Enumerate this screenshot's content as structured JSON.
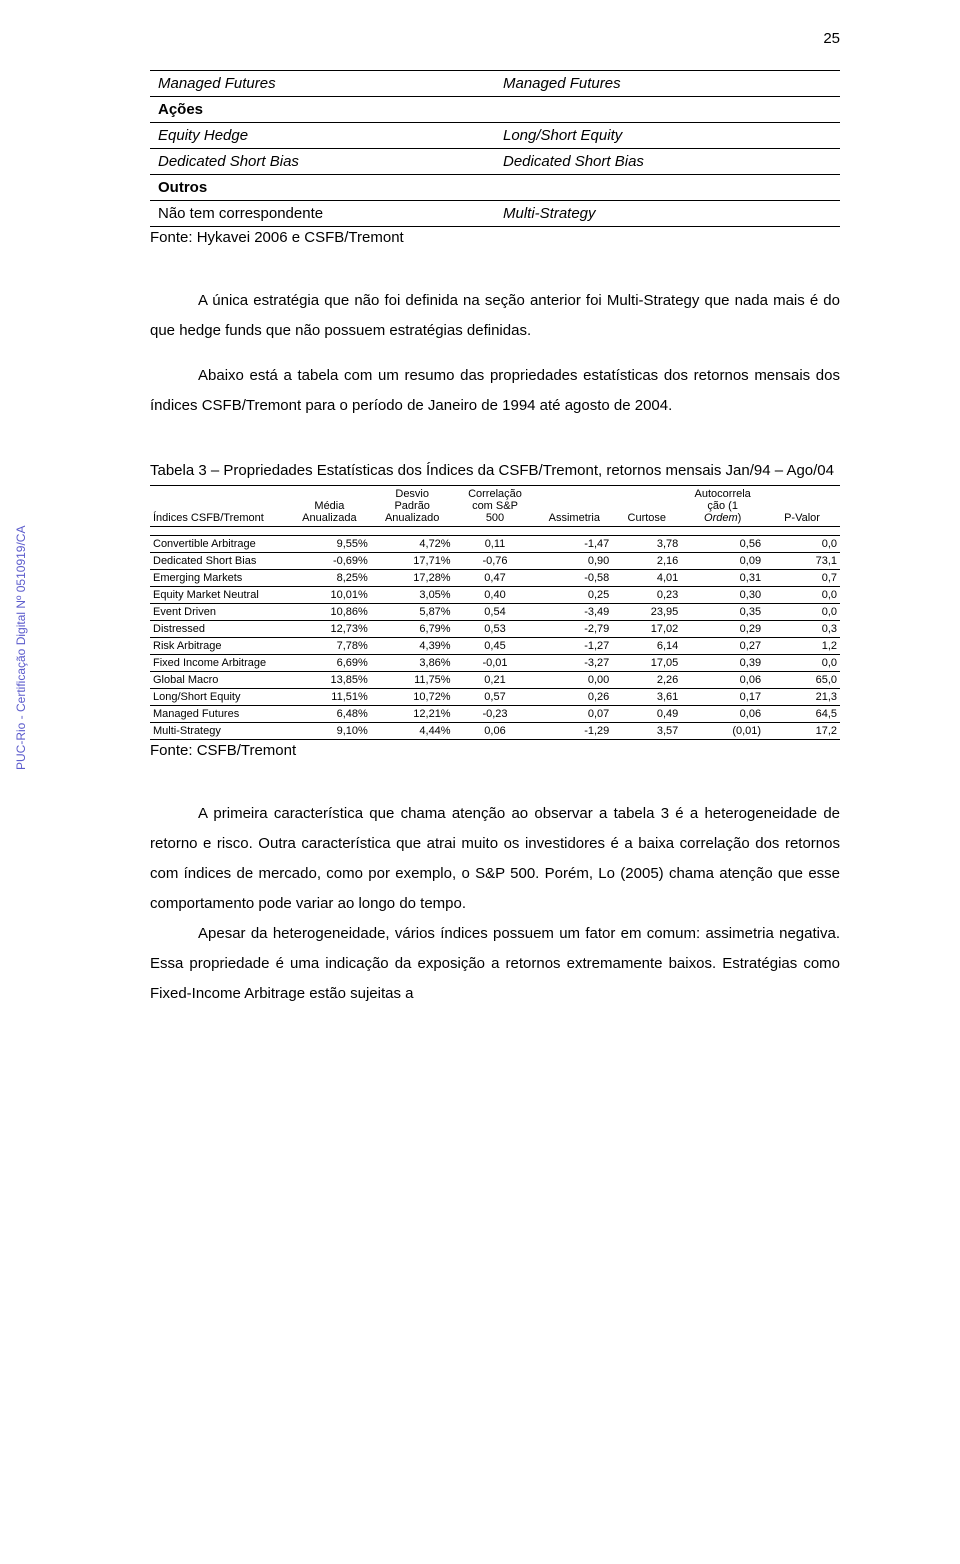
{
  "pageNumber": "25",
  "watermark": "PUC-Rio - Certificação Digital Nº 0510919/CA",
  "table1": {
    "rows": [
      {
        "left": "Managed Futures",
        "leftItalic": true,
        "right": "Managed Futures",
        "rightItalic": true,
        "leftBold": false
      },
      {
        "left": "Ações",
        "leftItalic": false,
        "right": "",
        "rightItalic": false,
        "leftBold": true
      },
      {
        "left": "Equity Hedge",
        "leftItalic": true,
        "right": "Long/Short Equity",
        "rightItalic": true,
        "leftBold": false
      },
      {
        "left": "Dedicated Short Bias",
        "leftItalic": true,
        "right": "Dedicated Short Bias",
        "rightItalic": true,
        "leftBold": false
      },
      {
        "left": "Outros",
        "leftItalic": false,
        "right": "",
        "rightItalic": false,
        "leftBold": true
      },
      {
        "left": "Não tem correspondente",
        "leftItalic": false,
        "right": "Multi-Strategy",
        "rightItalic": true,
        "leftBold": false
      }
    ],
    "source": "Fonte: Hykavei 2006 e CSFB/Tremont"
  },
  "para1": "A única estratégia que não foi definida na seção anterior foi Multi-Strategy que nada mais é do que hedge funds que não possuem estratégias definidas.",
  "para2": "Abaixo está a tabela com um resumo das propriedades estatísticas dos retornos mensais dos índices CSFB/Tremont para o período de Janeiro de 1994 até agosto de 2004.",
  "table3": {
    "caption": "Tabela 3 – Propriedades Estatísticas dos Índices da CSFB/Tremont, retornos mensais Jan/94 – Ago/04",
    "columns": [
      "Índices CSFB/Tremont",
      "Média Anualizada",
      "Desvio Padrão Anualizado",
      "Correlação com S&P 500",
      "Assimetria",
      "Curtose",
      "Autocorrela ção (1 Ordem)",
      "P-Valor"
    ],
    "columnItalic": [
      false,
      false,
      false,
      false,
      false,
      false,
      true,
      false
    ],
    "rows": [
      {
        "name": "Convertible Arbitrage",
        "avg": "9,55%",
        "sd": "4,72%",
        "corr": "0,11",
        "skew": "-1,47",
        "kurt": "3,78",
        "ac": "0,56",
        "pv": "0,0"
      },
      {
        "name": "Dedicated Short Bias",
        "avg": "-0,69%",
        "sd": "17,71%",
        "corr": "-0,76",
        "skew": "0,90",
        "kurt": "2,16",
        "ac": "0,09",
        "pv": "73,1"
      },
      {
        "name": "Emerging Markets",
        "avg": "8,25%",
        "sd": "17,28%",
        "corr": "0,47",
        "skew": "-0,58",
        "kurt": "4,01",
        "ac": "0,31",
        "pv": "0,7"
      },
      {
        "name": "Equity Market Neutral",
        "avg": "10,01%",
        "sd": "3,05%",
        "corr": "0,40",
        "skew": "0,25",
        "kurt": "0,23",
        "ac": "0,30",
        "pv": "0,0"
      },
      {
        "name": "Event Driven",
        "avg": "10,86%",
        "sd": "5,87%",
        "corr": "0,54",
        "skew": "-3,49",
        "kurt": "23,95",
        "ac": "0,35",
        "pv": "0,0"
      },
      {
        "name": "Distressed",
        "avg": "12,73%",
        "sd": "6,79%",
        "corr": "0,53",
        "skew": "-2,79",
        "kurt": "17,02",
        "ac": "0,29",
        "pv": "0,3"
      },
      {
        "name": "Risk Arbitrage",
        "avg": "7,78%",
        "sd": "4,39%",
        "corr": "0,45",
        "skew": "-1,27",
        "kurt": "6,14",
        "ac": "0,27",
        "pv": "1,2"
      },
      {
        "name": "Fixed Income Arbitrage",
        "avg": "6,69%",
        "sd": "3,86%",
        "corr": "-0,01",
        "skew": "-3,27",
        "kurt": "17,05",
        "ac": "0,39",
        "pv": "0,0"
      },
      {
        "name": "Global Macro",
        "avg": "13,85%",
        "sd": "11,75%",
        "corr": "0,21",
        "skew": "0,00",
        "kurt": "2,26",
        "ac": "0,06",
        "pv": "65,0"
      },
      {
        "name": "Long/Short Equity",
        "avg": "11,51%",
        "sd": "10,72%",
        "corr": "0,57",
        "skew": "0,26",
        "kurt": "3,61",
        "ac": "0,17",
        "pv": "21,3"
      },
      {
        "name": "Managed Futures",
        "avg": "6,48%",
        "sd": "12,21%",
        "corr": "-0,23",
        "skew": "0,07",
        "kurt": "0,49",
        "ac": "0,06",
        "pv": "64,5"
      },
      {
        "name": "Multi-Strategy",
        "avg": "9,10%",
        "sd": "4,44%",
        "corr": "0,06",
        "skew": "-1,29",
        "kurt": "3,57",
        "ac": "(0,01)",
        "pv": "17,2"
      }
    ],
    "source": "Fonte: CSFB/Tremont"
  },
  "body": {
    "p1": "A primeira característica que chama atenção ao observar a tabela 3 é a heterogeneidade de retorno e risco. Outra característica que atrai muito os investidores é a baixa correlação dos retornos com índices de mercado, como por exemplo, o S&P 500. Porém, Lo (2005) chama atenção que esse comportamento pode variar ao longo do tempo.",
    "p2": "Apesar da heterogeneidade, vários índices possuem um fator em comum: assimetria negativa. Essa propriedade é uma indicação da exposição a retornos extremamente baixos. Estratégias como Fixed-Income Arbitrage estão sujeitas a"
  }
}
